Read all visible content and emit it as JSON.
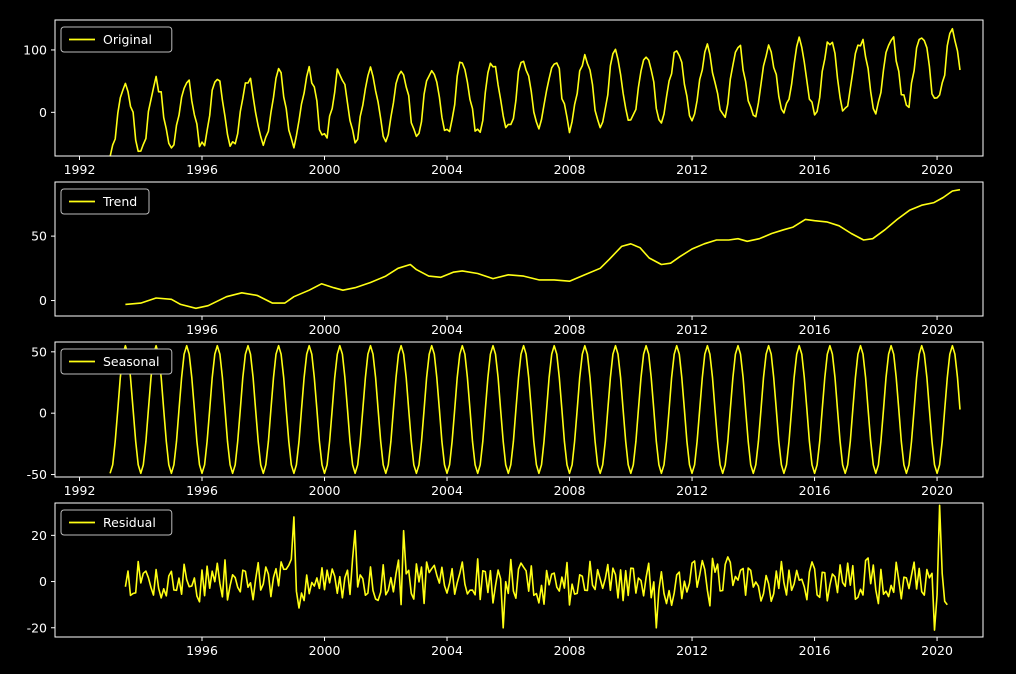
{
  "style": {
    "background": "#000000",
    "line_color": "#ffff14",
    "axes_color": "#ffffff"
  },
  "chart_data": [
    {
      "type": "line",
      "series": [
        {
          "name": "Original"
        }
      ],
      "x_range": [
        1991.2,
        2021.5
      ],
      "ylim": [
        -70,
        148
      ],
      "yticks": [
        0,
        100
      ],
      "xticks": [
        1992,
        1996,
        2000,
        2004,
        2008,
        2012,
        2016,
        2020
      ],
      "legend": "top-left",
      "signal": {
        "start": 1993.0,
        "end": 2020.75,
        "level_start": -10,
        "level_end": 70,
        "amplitude": 55,
        "phase_offset": 0.0
      }
    },
    {
      "type": "line",
      "series": [
        {
          "name": "Trend"
        }
      ],
      "x_range": [
        1991.2,
        2021.5
      ],
      "ylim": [
        -12,
        92
      ],
      "yticks": [
        0,
        50
      ],
      "xticks": [
        1996,
        2000,
        2004,
        2008,
        2012,
        2016,
        2020
      ],
      "legend": "top-left",
      "points": [
        [
          1993.5,
          -3
        ],
        [
          1994.0,
          -2
        ],
        [
          1994.5,
          2
        ],
        [
          1995.0,
          1
        ],
        [
          1995.3,
          -3
        ],
        [
          1995.8,
          -6
        ],
        [
          1996.2,
          -4
        ],
        [
          1996.8,
          3
        ],
        [
          1997.3,
          6
        ],
        [
          1997.8,
          4
        ],
        [
          1998.3,
          -2
        ],
        [
          1998.7,
          -2
        ],
        [
          1999.0,
          3
        ],
        [
          1999.5,
          8
        ],
        [
          1999.9,
          13
        ],
        [
          2000.3,
          10
        ],
        [
          2000.6,
          8
        ],
        [
          2001.0,
          10
        ],
        [
          2001.5,
          14
        ],
        [
          2002.0,
          19
        ],
        [
          2002.4,
          25
        ],
        [
          2002.8,
          28
        ],
        [
          2003.0,
          24
        ],
        [
          2003.4,
          19
        ],
        [
          2003.8,
          18
        ],
        [
          2004.2,
          22
        ],
        [
          2004.5,
          23
        ],
        [
          2005.0,
          21
        ],
        [
          2005.5,
          17
        ],
        [
          2006.0,
          20
        ],
        [
          2006.5,
          19
        ],
        [
          2007.0,
          16
        ],
        [
          2007.5,
          16
        ],
        [
          2008.0,
          15
        ],
        [
          2008.5,
          20
        ],
        [
          2009.0,
          25
        ],
        [
          2009.3,
          32
        ],
        [
          2009.7,
          42
        ],
        [
          2010.0,
          44
        ],
        [
          2010.3,
          41
        ],
        [
          2010.6,
          33
        ],
        [
          2011.0,
          28
        ],
        [
          2011.3,
          29
        ],
        [
          2011.6,
          34
        ],
        [
          2012.0,
          40
        ],
        [
          2012.4,
          44
        ],
        [
          2012.8,
          47
        ],
        [
          2013.2,
          47
        ],
        [
          2013.5,
          48
        ],
        [
          2013.8,
          46
        ],
        [
          2014.2,
          48
        ],
        [
          2014.6,
          52
        ],
        [
          2015.0,
          55
        ],
        [
          2015.3,
          57
        ],
        [
          2015.7,
          63
        ],
        [
          2016.0,
          62
        ],
        [
          2016.4,
          61
        ],
        [
          2016.8,
          58
        ],
        [
          2017.2,
          52
        ],
        [
          2017.6,
          47
        ],
        [
          2017.9,
          48
        ],
        [
          2018.3,
          55
        ],
        [
          2018.7,
          63
        ],
        [
          2019.1,
          70
        ],
        [
          2019.5,
          74
        ],
        [
          2019.9,
          76
        ],
        [
          2020.2,
          80
        ],
        [
          2020.5,
          85
        ],
        [
          2020.75,
          86
        ]
      ]
    },
    {
      "type": "line",
      "series": [
        {
          "name": "Seasonal"
        }
      ],
      "x_range": [
        1991.2,
        2021.5
      ],
      "ylim": [
        -52,
        58
      ],
      "yticks": [
        -50,
        0,
        50
      ],
      "xticks": [
        1992,
        1996,
        2000,
        2004,
        2008,
        2012,
        2016,
        2020
      ],
      "legend": "top-left",
      "signal": {
        "start": 1993.0,
        "end": 2020.75,
        "amplitude": 52,
        "phase_offset": 0.0
      }
    },
    {
      "type": "line",
      "series": [
        {
          "name": "Residual"
        }
      ],
      "x_range": [
        1991.2,
        2021.5
      ],
      "ylim": [
        -24,
        34
      ],
      "yticks": [
        -20,
        0,
        20
      ],
      "xticks": [
        1996,
        2000,
        2004,
        2008,
        2012,
        2016,
        2020
      ],
      "legend": "top-left",
      "signal": {
        "start": 1993.5,
        "end": 2020.4,
        "noise_amplitude": 9,
        "seed": 7,
        "spikes": [
          [
            1999.0,
            28
          ],
          [
            2001.0,
            22
          ],
          [
            2002.6,
            22
          ],
          [
            2005.8,
            -20
          ],
          [
            2010.8,
            -20
          ],
          [
            2019.9,
            -21
          ],
          [
            2020.1,
            33
          ],
          [
            2020.3,
            -10
          ]
        ]
      }
    }
  ]
}
